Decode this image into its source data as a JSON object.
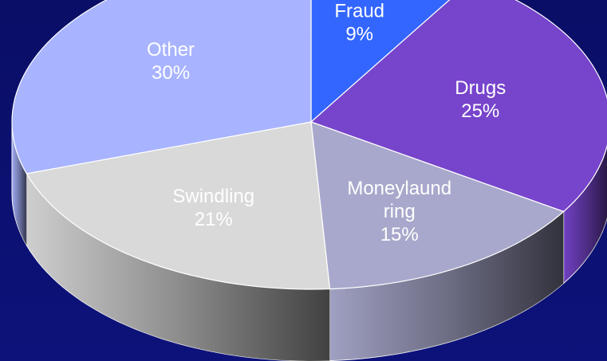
{
  "chart_data": {
    "type": "pie3d",
    "categories": [
      "Fraud",
      "Drugs",
      "Moneylaund ring",
      "Swindling",
      "Other"
    ],
    "values": [
      9,
      25,
      15,
      21,
      30
    ],
    "value_labels": [
      "9%",
      "25%",
      "15%",
      "21%",
      "30%"
    ],
    "colors": [
      "#3366ff",
      "#7744cc",
      "#a8a8cc",
      "#d9d9d9",
      "#a8b4ff"
    ]
  }
}
